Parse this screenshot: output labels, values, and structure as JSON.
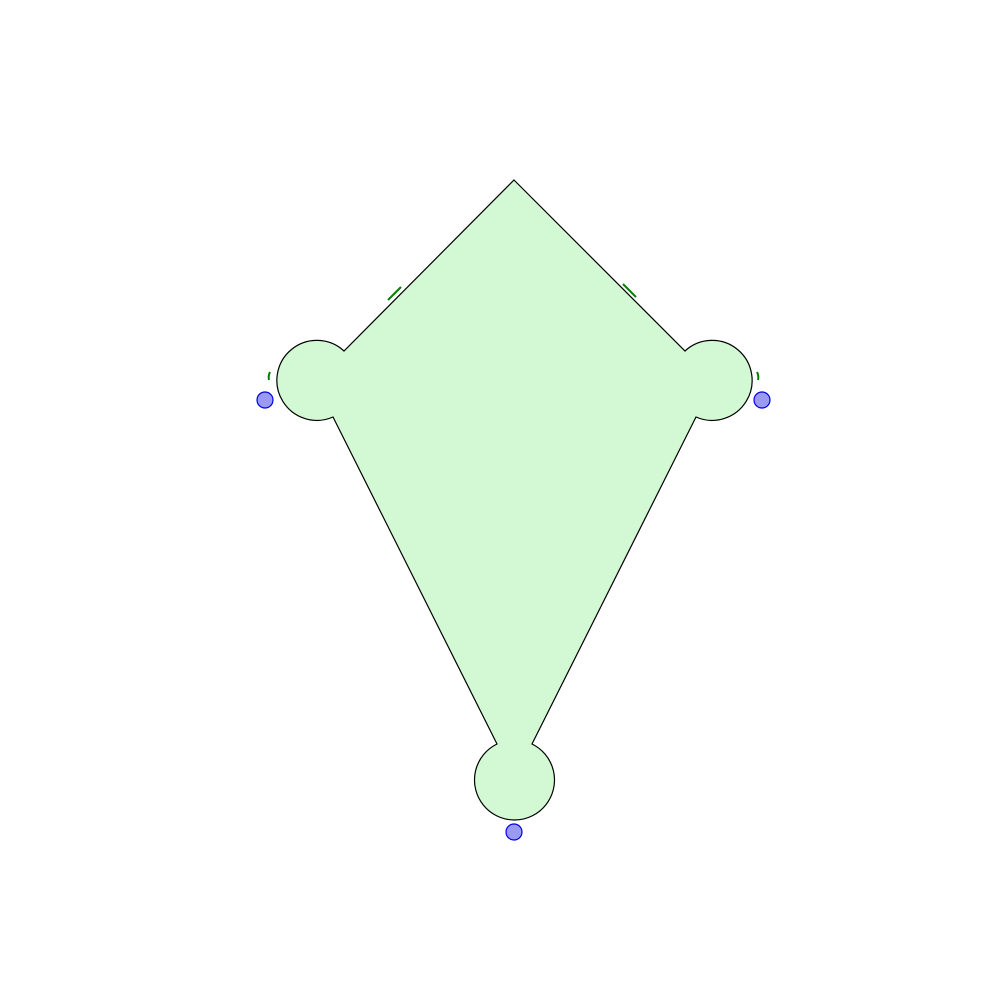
{
  "diagram": {
    "shape": "kite",
    "colors": {
      "fill": "#d2f8d4",
      "outline": "#000000",
      "tick_marks": "#008000",
      "vertex_dot_fill": "#9a9af2",
      "vertex_dot_stroke": "#0000e6"
    },
    "vertices": [
      {
        "id": "top",
        "lobe": false
      },
      {
        "id": "left",
        "lobe": true,
        "dot": true
      },
      {
        "id": "right",
        "lobe": true,
        "dot": true
      },
      {
        "id": "bottom",
        "lobe": true,
        "dot": true
      }
    ],
    "equal_side_ticks": [
      {
        "side": "upper-left",
        "count": 1
      },
      {
        "side": "upper-right",
        "count": 1
      }
    ],
    "equal_arc_ticks": [
      {
        "vertex": "left",
        "count": 1
      },
      {
        "vertex": "right",
        "count": 1
      }
    ]
  }
}
